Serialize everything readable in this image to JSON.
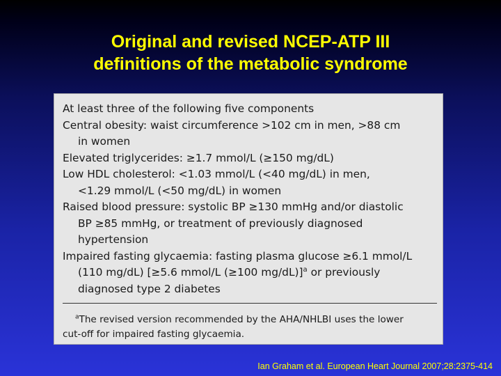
{
  "slide": {
    "title_line1": "Original and revised NCEP-ATP III",
    "title_line2": "definitions of the metabolic syndrome"
  },
  "table": {
    "lines": [
      {
        "text": "At least three of the following five components",
        "indent": false
      },
      {
        "text": "Central obesity: waist circumference >102 cm in men, >88 cm",
        "indent": false
      },
      {
        "text": "in women",
        "indent": true
      },
      {
        "text": "Elevated triglycerides: ≥1.7 mmol/L (≥150 mg/dL)",
        "indent": false
      },
      {
        "text": "Low HDL cholesterol: <1.03 mmol/L (<40 mg/dL) in men,",
        "indent": false
      },
      {
        "text": "<1.29 mmol/L (<50 mg/dL) in women",
        "indent": true
      },
      {
        "text": "Raised blood pressure: systolic BP ≥130 mmHg and/or diastolic",
        "indent": false
      },
      {
        "text": "BP ≥85 mmHg, or treatment of previously diagnosed",
        "indent": true
      },
      {
        "text": "hypertension",
        "indent": true
      },
      {
        "text": "Impaired fasting glycaemia: fasting plasma glucose ≥6.1 mmol/L",
        "indent": false
      },
      {
        "text": "(110 mg/dL) [≥5.6 mmol/L (≥100 mg/dL)]",
        "indent": true,
        "superscript": "a",
        "after": " or previously"
      },
      {
        "text": "diagnosed type 2 diabetes",
        "indent": true
      }
    ],
    "footnote": {
      "marker": "a",
      "line1": "The revised version recommended by the AHA/NHLBI uses the lower",
      "line2": "cut-off for impaired fasting glycaemia."
    }
  },
  "citation": "Ian Graham et al. European Heart Journal 2007;28:2375-414",
  "colors": {
    "title": "#ffff00",
    "citation": "#ffff00",
    "panel_bg": "#e6e6e6",
    "background_top": "#000000",
    "background_bottom": "#2a33d8"
  }
}
